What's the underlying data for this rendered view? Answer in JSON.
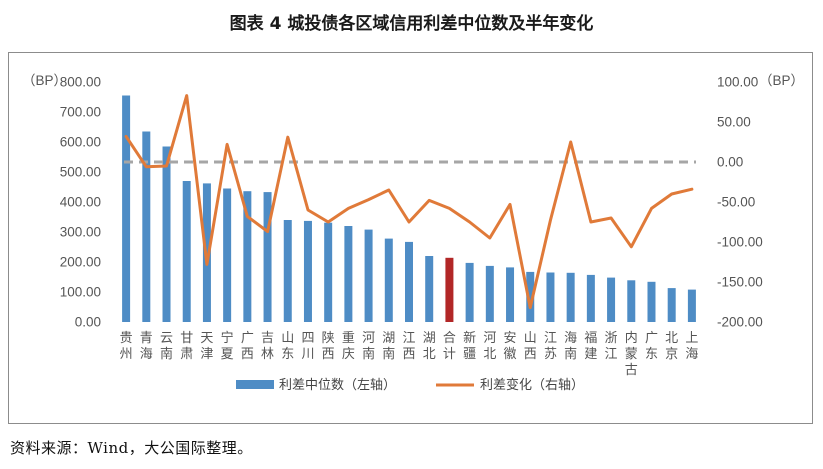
{
  "title": "图表 4  城投债各区域信用利差中位数及半年变化",
  "source": "资料来源：Wind，大公国际整理。",
  "chart_data": {
    "type": "bar",
    "categories": [
      "贵州",
      "青海",
      "云南",
      "甘肃",
      "天津",
      "宁夏",
      "广西",
      "吉林",
      "山东",
      "四川",
      "陕西",
      "重庆",
      "河南",
      "湖南",
      "江西",
      "湖北",
      "合计",
      "新疆",
      "河北",
      "安徽",
      "山西",
      "江苏",
      "海南",
      "福建",
      "浙江",
      "内蒙古",
      "广东",
      "北京",
      "上海"
    ],
    "series": [
      {
        "name": "利差中位数（左轴）",
        "type": "bar",
        "axis": "left",
        "color": "#4e8cc5",
        "highlight_color": "#b22727",
        "highlight_category": "合计",
        "values": [
          755,
          635,
          585,
          470,
          462,
          445,
          436,
          433,
          340,
          337,
          331,
          320,
          308,
          278,
          267,
          220,
          214,
          197,
          187,
          182,
          167,
          165,
          164,
          157,
          148,
          139,
          134,
          113,
          108
        ]
      },
      {
        "name": "利差变化（右轴）",
        "type": "line",
        "axis": "right",
        "color": "#e07a39",
        "values": [
          32,
          -6,
          -5,
          83,
          -128,
          22,
          -68,
          -87,
          31,
          -60,
          -75,
          -58,
          -47,
          -35,
          -75,
          -48,
          -58,
          -75,
          -95,
          -53,
          -182,
          -73,
          25,
          -75,
          -70,
          -106,
          -58,
          -40,
          -34
        ]
      }
    ],
    "reference_line": {
      "axis": "right",
      "value": 0,
      "style": "dashed",
      "color": "#a6a6a6"
    },
    "y_left": {
      "unit": "（BP）",
      "ylim": [
        0,
        800
      ],
      "ticks": [
        "0.00",
        "100.00",
        "200.00",
        "300.00",
        "400.00",
        "500.00",
        "600.00",
        "700.00",
        "800.00"
      ]
    },
    "y_right": {
      "unit": "（BP）",
      "ylim": [
        -200,
        100
      ],
      "ticks": [
        "-200.00",
        "-150.00",
        "-100.00",
        "-50.00",
        "0.00",
        "50.00",
        "100.00"
      ]
    },
    "grid": false,
    "legend_position": "bottom"
  }
}
